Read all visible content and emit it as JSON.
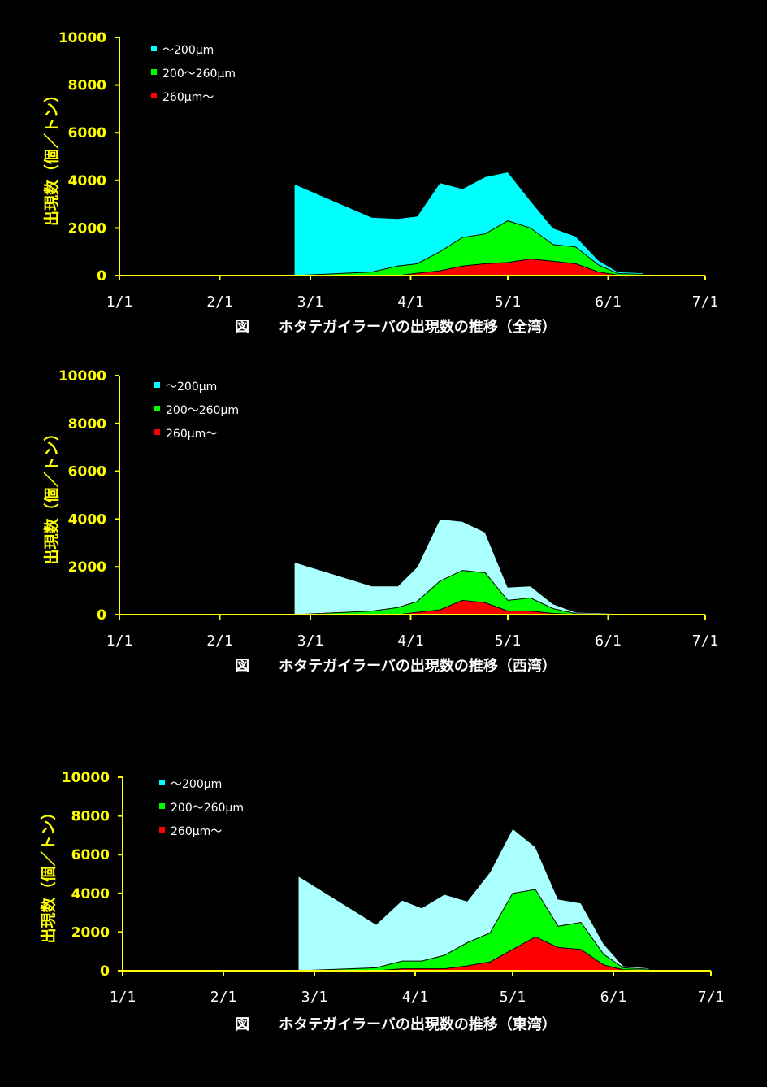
{
  "chart_data": [
    {
      "type": "area",
      "title": "図　　ホタテガイラーバの出現数の推移（全湾）",
      "ylabel": "出現数（個／トン）",
      "ylim": [
        0,
        10000
      ],
      "yticks": [
        "0",
        "2000",
        "4000",
        "6000",
        "8000",
        "10000"
      ],
      "xticks": [
        "1/1",
        "2/1",
        "3/1",
        "4/1",
        "5/1",
        "6/1",
        "7/1"
      ],
      "x": [
        "2/24",
        "3/20",
        "3/28",
        "4/3",
        "4/10",
        "4/17",
        "4/24",
        "5/1",
        "5/8",
        "5/15",
        "5/22",
        "5/29",
        "6/4",
        "6/12"
      ],
      "series": [
        {
          "name": "～200μm",
          "color": "#00ffff",
          "values": [
            3850,
            2300,
            2000,
            2000,
            2900,
            2050,
            2400,
            2050,
            1150,
            700,
            450,
            200,
            70,
            60
          ]
        },
        {
          "name": "200～260μm",
          "color": "#00ff00",
          "values": [
            0,
            150,
            400,
            400,
            800,
            1200,
            1250,
            1750,
            1300,
            700,
            700,
            300,
            70,
            40
          ]
        },
        {
          "name": "260μm～",
          "color": "#ff0000",
          "values": [
            0,
            0,
            0,
            100,
            200,
            400,
            500,
            550,
            700,
            600,
            500,
            150,
            20,
            10
          ]
        }
      ]
    },
    {
      "type": "area",
      "title": "図　　ホタテガイラーバの出現数の推移（西湾）",
      "ylabel": "出現数（個／トン）",
      "ylim": [
        0,
        10000
      ],
      "yticks": [
        "0",
        "2000",
        "4000",
        "6000",
        "8000",
        "10000"
      ],
      "xticks": [
        "1/1",
        "2/1",
        "3/1",
        "4/1",
        "5/1",
        "6/1",
        "7/1"
      ],
      "x": [
        "2/24",
        "3/20",
        "3/28",
        "4/3",
        "4/10",
        "4/17",
        "4/24",
        "5/1",
        "5/8",
        "5/15",
        "5/22",
        "5/29",
        "6/4",
        "6/12"
      ],
      "series": [
        {
          "name": "～200μm",
          "color": "#aaffff",
          "values": [
            2200,
            1050,
            900,
            1450,
            2600,
            2050,
            1700,
            550,
            500,
            200,
            60,
            50,
            30,
            20
          ]
        },
        {
          "name": "200～260μm",
          "color": "#00ff00",
          "values": [
            0,
            150,
            300,
            450,
            1200,
            1250,
            1250,
            450,
            550,
            200,
            30,
            20,
            10,
            5
          ]
        },
        {
          "name": "260μm～",
          "color": "#ff0000",
          "values": [
            0,
            0,
            0,
            100,
            200,
            600,
            500,
            150,
            150,
            50,
            10,
            5,
            5,
            0
          ]
        }
      ]
    },
    {
      "type": "area",
      "title": "図　　ホタテガイラーバの出現数の推移（東湾）",
      "ylabel": "出現数（個／トン）",
      "ylim": [
        0,
        10000
      ],
      "yticks": [
        "0",
        "2000",
        "4000",
        "6000",
        "8000",
        "10000"
      ],
      "xticks": [
        "1/1",
        "2/1",
        "3/1",
        "4/1",
        "5/1",
        "6/1",
        "7/1"
      ],
      "x": [
        "2/24",
        "3/20",
        "3/28",
        "4/3",
        "4/10",
        "4/17",
        "4/24",
        "5/1",
        "5/8",
        "5/15",
        "5/22",
        "5/29",
        "6/4",
        "6/12"
      ],
      "series": [
        {
          "name": "～200μm",
          "color": "#aaffff",
          "values": [
            4900,
            2250,
            3150,
            2750,
            3150,
            2150,
            3150,
            3350,
            2200,
            1400,
            1000,
            550,
            100,
            60
          ]
        },
        {
          "name": "200～260μm",
          "color": "#00ff00",
          "values": [
            0,
            150,
            400,
            400,
            700,
            1200,
            1500,
            2900,
            2450,
            1100,
            1400,
            550,
            100,
            60
          ]
        },
        {
          "name": "260μm～",
          "color": "#ff0000",
          "values": [
            0,
            0,
            100,
            100,
            100,
            250,
            450,
            1100,
            1750,
            1200,
            1100,
            300,
            50,
            20
          ]
        }
      ]
    }
  ]
}
